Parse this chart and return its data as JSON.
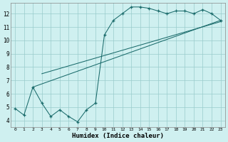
{
  "xlabel": "Humidex (Indice chaleur)",
  "bg_color": "#cff0f0",
  "line_color": "#1a6b6b",
  "grid_color": "#99cccc",
  "xlim": [
    -0.5,
    23.5
  ],
  "ylim": [
    3.5,
    12.8
  ],
  "xticks": [
    0,
    1,
    2,
    3,
    4,
    5,
    6,
    7,
    8,
    9,
    10,
    11,
    12,
    13,
    14,
    15,
    16,
    17,
    18,
    19,
    20,
    21,
    22,
    23
  ],
  "yticks": [
    4,
    5,
    6,
    7,
    8,
    9,
    10,
    11,
    12
  ],
  "line1_x": [
    0,
    1,
    2,
    3,
    4,
    5,
    6,
    7,
    8,
    9,
    10,
    11,
    12,
    13,
    14,
    15,
    16,
    17,
    18,
    19,
    20,
    21,
    22,
    23
  ],
  "line1_y": [
    4.9,
    4.4,
    6.5,
    5.3,
    4.3,
    4.8,
    4.3,
    3.9,
    4.8,
    5.3,
    10.4,
    11.5,
    12.0,
    12.5,
    12.5,
    12.4,
    12.2,
    12.0,
    12.2,
    12.2,
    12.0,
    12.3,
    12.0,
    11.5
  ],
  "line2_x": [
    2,
    23
  ],
  "line2_y": [
    6.5,
    11.5
  ],
  "line3_x": [
    3,
    23
  ],
  "line3_y": [
    7.5,
    11.4
  ],
  "figwidth": 3.2,
  "figheight": 2.0,
  "dpi": 100
}
